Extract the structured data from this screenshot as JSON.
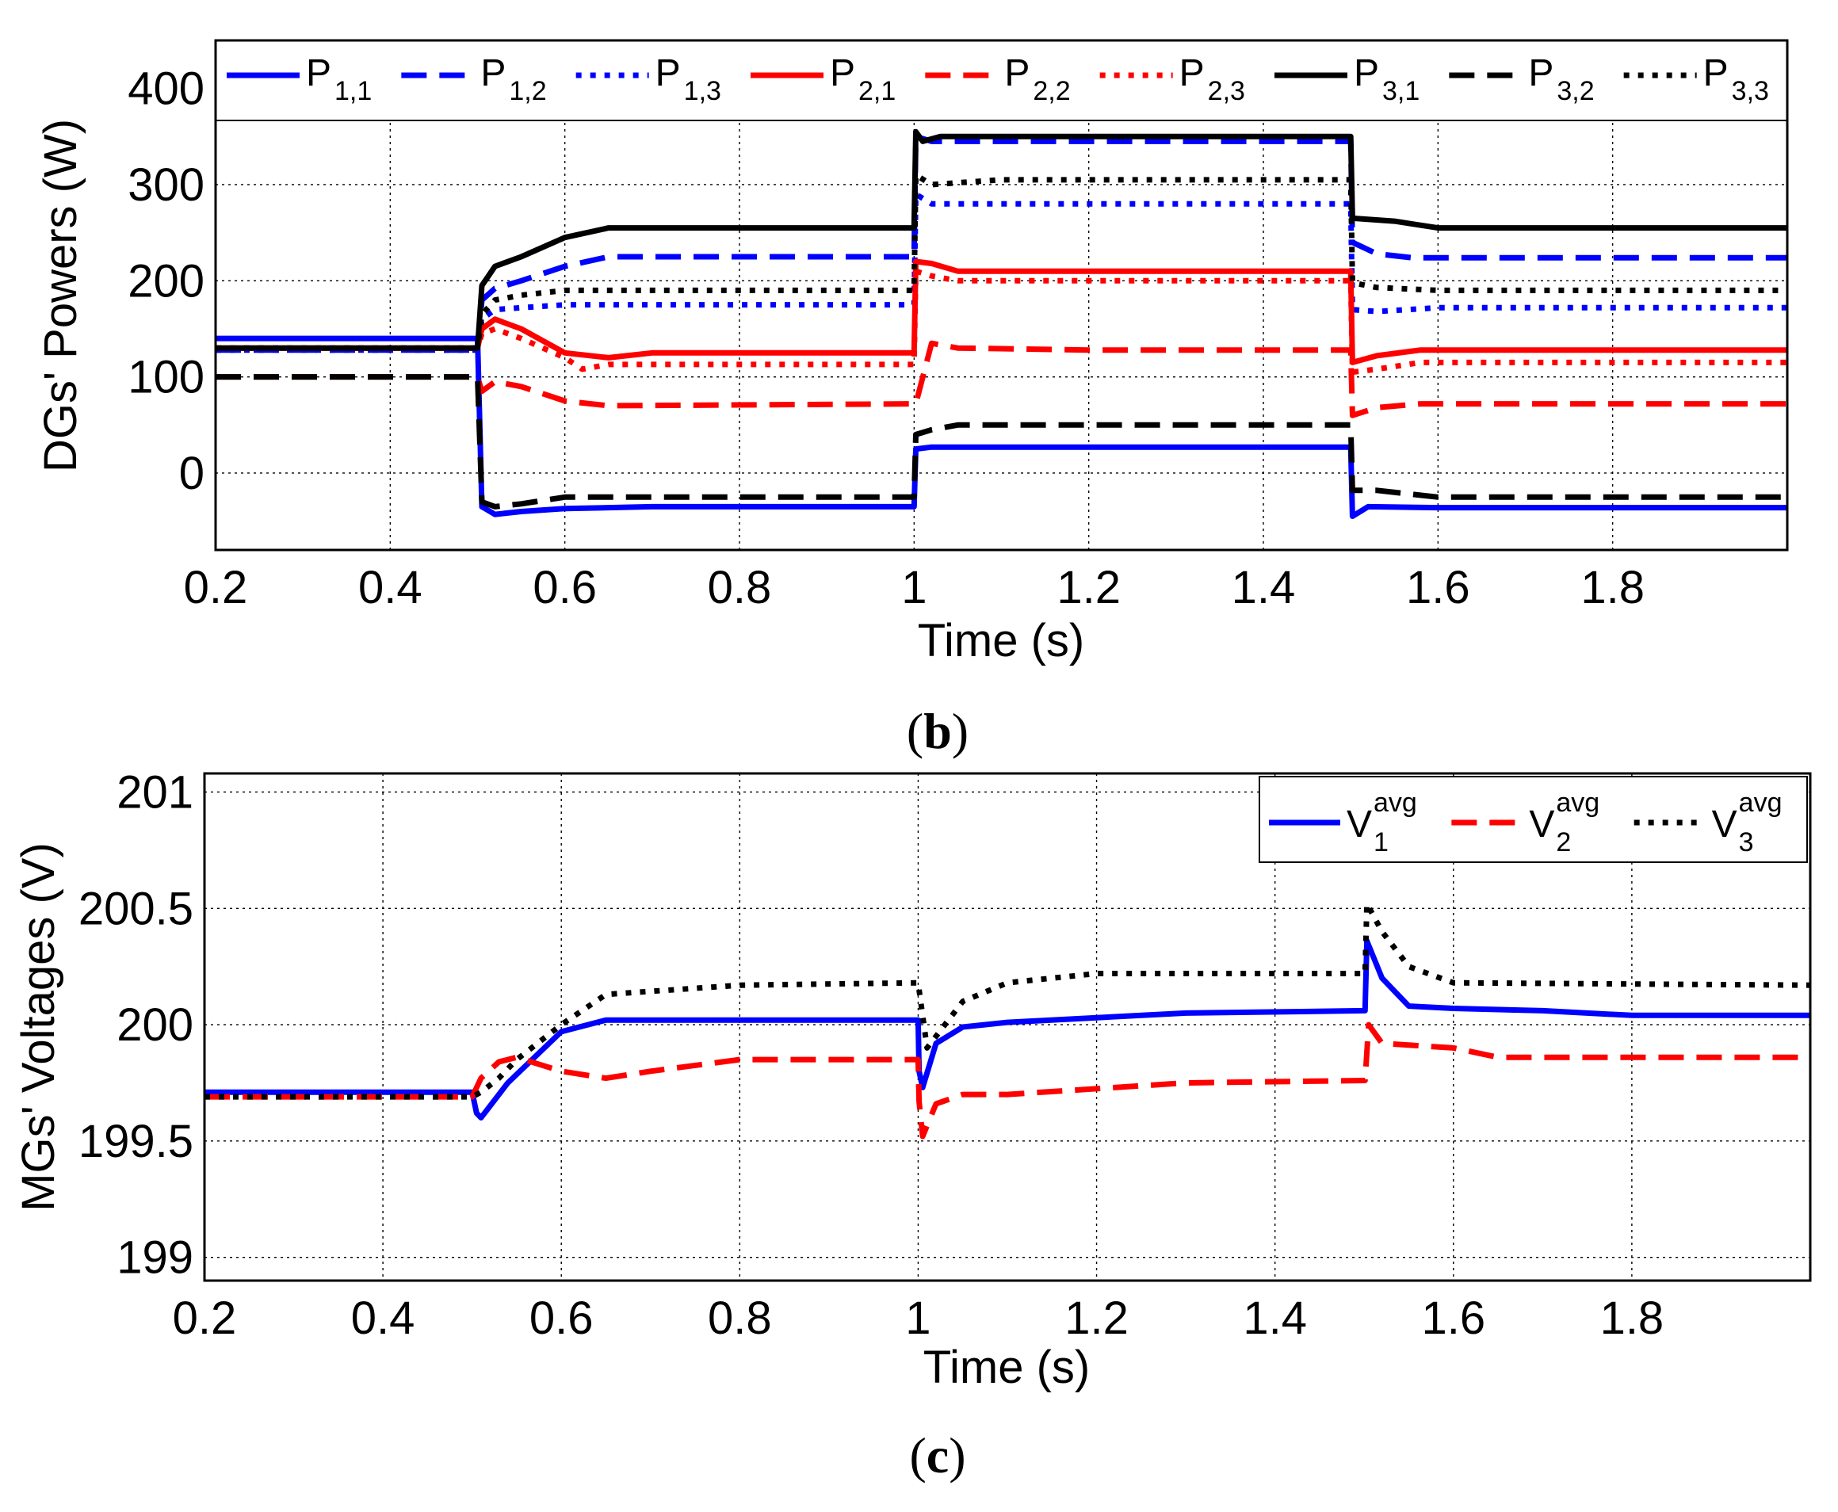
{
  "chart_data": [
    {
      "id": "b",
      "type": "line",
      "caption": "b",
      "xlabel": "Time (s)",
      "ylabel": "DGs' Powers (W)",
      "xlim": [
        0.2,
        2.0
      ],
      "ylim": [
        -80,
        450
      ],
      "xticks": [
        0.2,
        0.4,
        0.6,
        0.8,
        1,
        1.2,
        1.4,
        1.6,
        1.8
      ],
      "xtick_labels": [
        "0.2",
        "0.4",
        "0.6",
        "0.8",
        "1",
        "1.2",
        "1.4",
        "1.6",
        "1.8"
      ],
      "yticks": [
        0,
        100,
        200,
        300,
        400
      ],
      "ytick_labels": [
        "0",
        "100",
        "200",
        "300",
        "400"
      ],
      "grid": true,
      "legend_position": "top",
      "series": [
        {
          "name": "P",
          "sub": "1,1",
          "color": "#0000ff",
          "style": "solid",
          "x": [
            0.2,
            0.5,
            0.505,
            0.52,
            0.55,
            0.6,
            0.7,
            1.0,
            1.002,
            1.02,
            1.3,
            1.5,
            1.502,
            1.52,
            1.6,
            2.0
          ],
          "y": [
            140,
            140,
            -35,
            -43,
            -40,
            -37,
            -35,
            -35,
            25,
            27,
            27,
            27,
            -45,
            -35,
            -36,
            -36
          ]
        },
        {
          "name": "P",
          "sub": "1,2",
          "color": "#0000ff",
          "style": "dashed",
          "x": [
            0.2,
            0.5,
            0.505,
            0.52,
            0.55,
            0.6,
            0.65,
            0.7,
            1.0,
            1.002,
            1.02,
            1.3,
            1.5,
            1.502,
            1.53,
            1.57,
            2.0
          ],
          "y": [
            128,
            128,
            180,
            192,
            200,
            215,
            225,
            225,
            225,
            350,
            345,
            345,
            345,
            240,
            228,
            224,
            224
          ]
        },
        {
          "name": "P",
          "sub": "1,3",
          "color": "#0000ff",
          "style": "dotted",
          "x": [
            0.2,
            0.5,
            0.505,
            0.52,
            0.55,
            0.6,
            0.65,
            1.0,
            1.002,
            1.02,
            1.2,
            1.5,
            1.502,
            1.53,
            1.6,
            2.0
          ],
          "y": [
            128,
            128,
            160,
            170,
            172,
            175,
            175,
            175,
            290,
            280,
            280,
            280,
            170,
            168,
            172,
            172
          ]
        },
        {
          "name": "P",
          "sub": "2,1",
          "color": "#ff0000",
          "style": "solid",
          "x": [
            0.2,
            0.5,
            0.505,
            0.52,
            0.55,
            0.6,
            0.65,
            0.7,
            1.0,
            1.002,
            1.02,
            1.05,
            1.2,
            1.5,
            1.502,
            1.53,
            1.58,
            2.0
          ],
          "y": [
            130,
            130,
            150,
            160,
            150,
            125,
            120,
            125,
            125,
            220,
            218,
            210,
            210,
            210,
            115,
            122,
            128,
            128
          ]
        },
        {
          "name": "P",
          "sub": "2,2",
          "color": "#ff0000",
          "style": "dashed",
          "x": [
            0.2,
            0.5,
            0.505,
            0.52,
            0.55,
            0.6,
            0.65,
            1.0,
            1.002,
            1.02,
            1.05,
            1.2,
            1.5,
            1.502,
            1.53,
            1.58,
            2.0
          ],
          "y": [
            100,
            100,
            85,
            95,
            90,
            75,
            70,
            72,
            72,
            135,
            130,
            128,
            128,
            60,
            68,
            72,
            72
          ]
        },
        {
          "name": "P",
          "sub": "2,3",
          "color": "#ff0000",
          "style": "dotted",
          "x": [
            0.2,
            0.5,
            0.505,
            0.52,
            0.55,
            0.6,
            0.62,
            0.65,
            1.0,
            1.002,
            1.02,
            1.05,
            1.2,
            1.5,
            1.502,
            1.53,
            1.58,
            2.0
          ],
          "y": [
            130,
            130,
            145,
            150,
            140,
            120,
            108,
            113,
            113,
            210,
            205,
            200,
            200,
            200,
            105,
            108,
            115,
            115
          ]
        },
        {
          "name": "P",
          "sub": "3,1",
          "color": "#000000",
          "style": "solid",
          "x": [
            0.2,
            0.5,
            0.505,
            0.52,
            0.55,
            0.6,
            0.65,
            0.7,
            1.0,
            1.002,
            1.01,
            1.03,
            1.5,
            1.502,
            1.55,
            1.6,
            2.0
          ],
          "y": [
            130,
            130,
            195,
            215,
            225,
            245,
            255,
            255,
            255,
            355,
            345,
            350,
            350,
            265,
            262,
            255,
            255
          ]
        },
        {
          "name": "P",
          "sub": "3,2",
          "color": "#000000",
          "style": "dashed",
          "x": [
            0.2,
            0.5,
            0.505,
            0.52,
            0.55,
            0.6,
            0.65,
            1.0,
            1.002,
            1.02,
            1.05,
            1.2,
            1.5,
            1.502,
            1.53,
            1.6,
            2.0
          ],
          "y": [
            100,
            100,
            -30,
            -35,
            -32,
            -25,
            -25,
            -25,
            40,
            45,
            50,
            50,
            50,
            -18,
            -18,
            -25,
            -25
          ]
        },
        {
          "name": "P",
          "sub": "3,3",
          "color": "#000000",
          "style": "dotted",
          "x": [
            0.2,
            0.5,
            0.505,
            0.52,
            0.55,
            0.6,
            0.65,
            1.0,
            1.002,
            1.02,
            1.05,
            1.1,
            1.2,
            1.5,
            1.502,
            1.53,
            1.6,
            2.0
          ],
          "y": [
            130,
            130,
            165,
            180,
            185,
            190,
            190,
            190,
            310,
            300,
            302,
            305,
            305,
            305,
            198,
            193,
            190,
            190
          ]
        }
      ]
    },
    {
      "id": "c",
      "type": "line",
      "caption": "c",
      "xlabel": "Time (s)",
      "ylabel": "MGs' Voltages (V)",
      "xlim": [
        0.2,
        2.0
      ],
      "ylim": [
        198.9,
        201.08
      ],
      "xticks": [
        0.2,
        0.4,
        0.6,
        0.8,
        1,
        1.2,
        1.4,
        1.6,
        1.8
      ],
      "xtick_labels": [
        "0.2",
        "0.4",
        "0.6",
        "0.8",
        "1",
        "1.2",
        "1.4",
        "1.6",
        "1.8"
      ],
      "yticks": [
        199,
        199.5,
        200,
        200.5,
        201
      ],
      "ytick_labels": [
        "199",
        "199.5",
        "200",
        "200.5",
        "201"
      ],
      "grid": true,
      "legend_position": "top-right",
      "series": [
        {
          "name": "V",
          "sup": "avg",
          "sub": "1",
          "color": "#0000ff",
          "style": "solid",
          "x": [
            0.2,
            0.5,
            0.505,
            0.51,
            0.54,
            0.6,
            0.65,
            0.7,
            1.0,
            1.001,
            1.005,
            1.02,
            1.05,
            1.1,
            1.3,
            1.5,
            1.501,
            1.503,
            1.52,
            1.55,
            1.6,
            1.7,
            1.8,
            2.0
          ],
          "y": [
            199.71,
            199.71,
            199.62,
            199.6,
            199.75,
            199.97,
            200.02,
            200.02,
            200.02,
            199.8,
            199.73,
            199.92,
            199.99,
            200.01,
            200.05,
            200.06,
            200.06,
            200.36,
            200.2,
            200.08,
            200.07,
            200.06,
            200.04,
            200.04
          ]
        },
        {
          "name": "V",
          "sup": "avg",
          "sub": "2",
          "color": "#ff0000",
          "style": "dashed",
          "x": [
            0.2,
            0.5,
            0.51,
            0.53,
            0.55,
            0.6,
            0.65,
            0.7,
            0.8,
            1.0,
            1.001,
            1.005,
            1.02,
            1.05,
            1.1,
            1.3,
            1.5,
            1.501,
            1.505,
            1.52,
            1.6,
            1.65,
            2.0
          ],
          "y": [
            199.69,
            199.69,
            199.77,
            199.84,
            199.86,
            199.8,
            199.77,
            199.8,
            199.85,
            199.85,
            199.67,
            199.52,
            199.66,
            199.7,
            199.7,
            199.75,
            199.76,
            199.76,
            200.0,
            199.92,
            199.9,
            199.86,
            199.86
          ]
        },
        {
          "name": "V",
          "sup": "avg",
          "sub": "3",
          "color": "#000000",
          "style": "dotted",
          "x": [
            0.2,
            0.5,
            0.51,
            0.53,
            0.55,
            0.6,
            0.65,
            0.8,
            1.0,
            1.001,
            1.01,
            1.05,
            1.1,
            1.2,
            1.5,
            1.501,
            1.503,
            1.52,
            1.55,
            1.6,
            2.0
          ],
          "y": [
            199.69,
            199.69,
            199.71,
            199.77,
            199.85,
            200.0,
            200.13,
            200.17,
            200.18,
            200.15,
            199.9,
            200.1,
            200.18,
            200.22,
            200.22,
            200.22,
            200.52,
            200.4,
            200.25,
            200.18,
            200.17
          ]
        }
      ]
    }
  ]
}
